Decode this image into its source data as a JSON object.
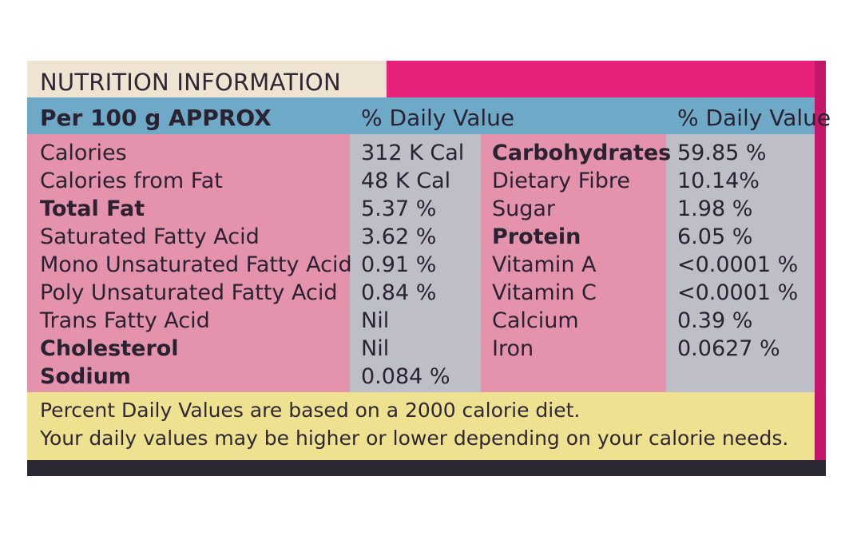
{
  "title": "NUTRITION INFORMATION",
  "header": {
    "per_serving": "Per 100 g APPROX",
    "daily_value_left": "% Daily Value",
    "daily_value_right": "% Daily Value"
  },
  "left_nutrients": [
    {
      "name": "Calories",
      "value": "312 K Cal",
      "bold": false
    },
    {
      "name": "Calories from Fat",
      "value": "48 K Cal",
      "bold": false
    },
    {
      "name": "Total Fat",
      "value": "5.37 %",
      "bold": true
    },
    {
      "name": "Saturated Fatty Acid",
      "value": "3.62 %",
      "bold": false
    },
    {
      "name": "Mono Unsaturated Fatty Acid",
      "value": "0.91 %",
      "bold": false
    },
    {
      "name": "Poly Unsaturated Fatty Acid",
      "value": "0.84 %",
      "bold": false
    },
    {
      "name": "Trans Fatty Acid",
      "value": "Nil",
      "bold": false
    },
    {
      "name": "Cholesterol",
      "value": "Nil",
      "bold": true
    },
    {
      "name": "Sodium",
      "value": "0.084 %",
      "bold": true
    }
  ],
  "right_nutrients": [
    {
      "name": "Carbohydrates",
      "value": "59.85 %",
      "bold": true
    },
    {
      "name": "Dietary Fibre",
      "value": "10.14%",
      "bold": false
    },
    {
      "name": "Sugar",
      "value": "1.98 %",
      "bold": false
    },
    {
      "name": "Protein",
      "value": "6.05 %",
      "bold": true
    },
    {
      "name": "Vitamin A",
      "value": "<0.0001 %",
      "bold": false
    },
    {
      "name": "Vitamin C",
      "value": "<0.0001 %",
      "bold": false
    },
    {
      "name": "Calcium",
      "value": "0.39 %",
      "bold": false
    },
    {
      "name": "Iron",
      "value": "0.0627 %",
      "bold": false
    }
  ],
  "footer": {
    "line1": "Percent Daily Values are based on a 2000 calorie diet.",
    "line2": "Your daily values may be higher or lower depending on your calorie needs."
  },
  "colors": {
    "panel": "#e8217a",
    "title_bg": "#efe3d2",
    "header_bg": "#6fa9c8",
    "pink_column": "#e592ad",
    "grey_column": "#bdbec8",
    "footer_bg": "#eee190"
  }
}
